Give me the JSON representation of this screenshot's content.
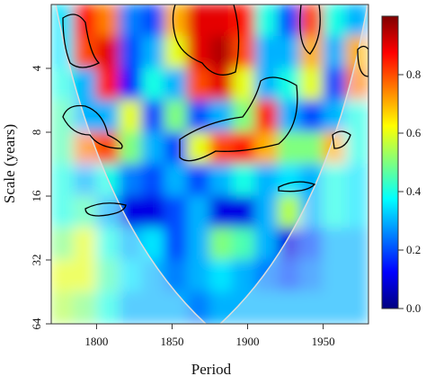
{
  "chart_data": {
    "type": "heatmap",
    "x_label": "Period",
    "y_label": "Scale (years)",
    "xlim": [
      1770,
      1980
    ],
    "xticks": [
      1800,
      1850,
      1900,
      1950
    ],
    "ylim": [
      2,
      64
    ],
    "yticks": [
      4,
      8,
      16,
      32,
      64
    ],
    "y_log": true,
    "y_reversed": true,
    "xbins": [
      1770,
      1785,
      1800,
      1815,
      1830,
      1845,
      1860,
      1875,
      1890,
      1905,
      1920,
      1935,
      1950,
      1965,
      1980
    ],
    "ybins": [
      2,
      2.83,
      4,
      5.66,
      8,
      11.3,
      16,
      22.6,
      32,
      45.3,
      64
    ],
    "values": [
      [
        0.35,
        0.85,
        0.75,
        0.25,
        0.2,
        0.7,
        0.9,
        0.9,
        0.85,
        0.4,
        0.2,
        0.8,
        0.4,
        0.3
      ],
      [
        0.35,
        0.8,
        0.9,
        0.2,
        0.3,
        0.6,
        0.9,
        0.95,
        0.8,
        0.3,
        0.3,
        0.7,
        0.3,
        0.7
      ],
      [
        0.4,
        0.3,
        0.85,
        0.15,
        0.4,
        0.3,
        0.8,
        0.9,
        0.6,
        0.3,
        0.4,
        0.6,
        0.2,
        0.75
      ],
      [
        0.45,
        0.3,
        0.3,
        0.6,
        0.2,
        0.5,
        0.2,
        0.3,
        0.5,
        0.85,
        0.3,
        0.2,
        0.3,
        0.4
      ],
      [
        0.45,
        0.75,
        0.8,
        0.5,
        0.3,
        0.2,
        0.6,
        0.8,
        0.85,
        0.7,
        0.5,
        0.5,
        0.7,
        0.4
      ],
      [
        0.4,
        0.3,
        0.4,
        0.25,
        0.2,
        0.3,
        0.2,
        0.3,
        0.4,
        0.3,
        0.35,
        0.3,
        0.4,
        0.35
      ],
      [
        0.4,
        0.45,
        0.3,
        0.1,
        0.1,
        0.2,
        0.3,
        0.1,
        0.1,
        0.3,
        0.55,
        0.3,
        0.4,
        0.35
      ],
      [
        0.5,
        0.6,
        0.4,
        0.3,
        0.35,
        0.2,
        0.3,
        0.5,
        0.45,
        0.3,
        0.1,
        0.2,
        0.3,
        0.3
      ],
      [
        0.6,
        0.6,
        0.45,
        0.35,
        0.3,
        0.25,
        0.3,
        0.35,
        0.3,
        0.25,
        0.2,
        0.25,
        0.3,
        0.3
      ],
      [
        0.55,
        0.5,
        0.4,
        0.3,
        0.3,
        0.3,
        0.25,
        0.3,
        0.3,
        0.3,
        0.3,
        0.3,
        0.3,
        0.3
      ]
    ],
    "zlim": [
      0,
      1
    ],
    "colormap": [
      "#00007f",
      "#0000ff",
      "#007fff",
      "#00ffff",
      "#7fff7f",
      "#ffff00",
      "#ff7f00",
      "#ff0000",
      "#7f0000"
    ],
    "colorbar_ticks": [
      {
        "value": 0,
        "label": "0.0"
      },
      {
        "value": 0.2,
        "label": "0.2"
      },
      {
        "value": 0.4,
        "label": "0.4"
      },
      {
        "value": 0.6,
        "label": "0.6"
      },
      {
        "value": 0.8,
        "label": "0.8"
      }
    ]
  }
}
